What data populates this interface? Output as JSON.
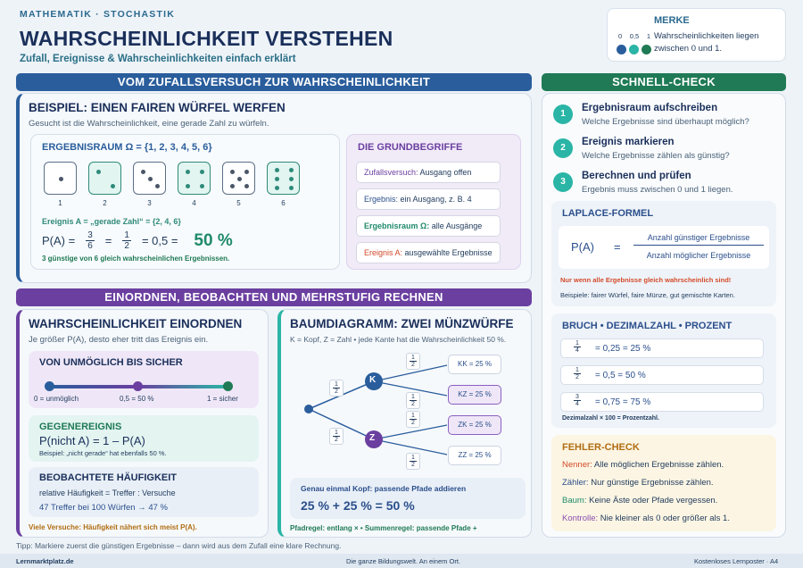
{
  "header": {
    "kicker": "MATHEMATIK · STOCHASTIK",
    "title": "WAHRSCHEINLICHKEIT VERSTEHEN",
    "subtitle": "Zufall, Ereignisse & Wahrscheinlichkeiten einfach erklärt"
  },
  "merke": {
    "title": "MERKE",
    "body": "Wahrscheinlichkeiten liegen zwischen 0 und 1.",
    "scale": [
      "0",
      "0,5",
      "1"
    ],
    "colors": [
      "#2a5d9c",
      "#2ab5a6",
      "#1f7a55"
    ]
  },
  "banner1": "VOM ZUFALLSVERSUCH ZUR WAHRSCHEINLICHKEIT",
  "banner2": "EINORDNEN, BEOBACHTEN UND MEHRSTUFIG RECHNEN",
  "banner3": "SCHNELL-CHECK",
  "beispiel": {
    "title": "BEISPIEL: EINEN FAIREN WÜRFEL WERFEN",
    "intro": "Gesucht ist die Wahrscheinlichkeit, eine gerade Zahl zu würfeln.",
    "raum": "ERGEBNISRAUM Ω = {1, 2, 3, 4, 5, 6}",
    "dice": [
      "1",
      "2",
      "3",
      "4",
      "5",
      "6"
    ],
    "ereignis": "Ereignis A = „gerade Zahl“ = {2, 4, 6}",
    "pa": "P(A) =",
    "f1n": "3",
    "f1d": "6",
    "eq1": "=",
    "f2n": "1",
    "f2d": "2",
    "eq2": "= 0,5 =",
    "pct": "50 %",
    "note": "3 günstige von 6 gleich wahrscheinlichen Ergebnissen."
  },
  "grund": {
    "title": "DIE GRUNDBEGRIFFE",
    "items": [
      {
        "k": "Zufallsversuch:",
        "v": " Ausgang offen"
      },
      {
        "k": "Ergebnis:",
        "v": " ein Ausgang, z. B. 4"
      },
      {
        "k": "Ergebnisraum Ω:",
        "v": " alle Ausgänge"
      },
      {
        "k": "Ereignis A:",
        "v": " ausgewählte Ergebnisse"
      }
    ]
  },
  "einordnen": {
    "title": "WAHRSCHEINLICHKEIT EINORDNEN",
    "intro": "Je größer P(A), desto eher tritt das Ereignis ein.",
    "scaleTitle": "VON UNMÖGLICH BIS SICHER",
    "s0": "0 = unmöglich",
    "s1": "0,5 = 50 %",
    "s2": "1 = sicher",
    "gegTitle": "GEGENEREIGNIS",
    "gegFormula": "P(nicht A) = 1 – P(A)",
    "gegNote": "Beispiel: „nicht gerade“ hat ebenfalls 50 %.",
    "haufTitle": "BEOBACHTETE HÄUFIGKEIT",
    "haufLine1": "relative Häufigkeit = Treffer : Versuche",
    "haufLine2": "47 Treffer bei 100 Würfen → 47 %",
    "haufNote": "Viele Versuche: Häufigkeit nähert sich meist P(A)."
  },
  "baum": {
    "title": "BAUMDIAGRAMM: ZWEI MÜNZWÜRFE",
    "intro": "K = Kopf, Z = Zahl • jede Kante hat die Wahrscheinlichkeit 50 %.",
    "n1": "K",
    "n2": "Z",
    "half": "1",
    "halfd": "2",
    "leaves": [
      "KK = 25 %",
      "KZ = 25 %",
      "ZK = 25 %",
      "ZZ = 25 %"
    ],
    "resTitle": "Genau einmal Kopf: passende Pfade addieren",
    "resFormula": "25 % + 25 % = 50 %",
    "regel": "Pfadregel: entlang × • Summenregel: passende Pfade +"
  },
  "check": {
    "steps": [
      {
        "n": "1",
        "t": "Ergebnisraum aufschreiben",
        "d": "Welche Ergebnisse sind überhaupt möglich?"
      },
      {
        "n": "2",
        "t": "Ereignis markieren",
        "d": "Welche Ergebnisse zählen als günstig?"
      },
      {
        "n": "3",
        "t": "Berechnen und prüfen",
        "d": "Ergebnis muss zwischen 0 und 1 liegen."
      }
    ]
  },
  "laplace": {
    "title": "LAPLACE-FORMEL",
    "pa": "P(A)",
    "eq": "=",
    "num": "Anzahl günstiger Ergebnisse",
    "den": "Anzahl möglicher Ergebnisse",
    "warn": "Nur wenn alle Ergebnisse gleich wahrscheinlich sind!",
    "bsp": "Beispiele: fairer Würfel, faire Münze, gut gemischte Karten."
  },
  "bruch": {
    "title": "BRUCH • DEZIMALZAHL • PROZENT",
    "rows": [
      {
        "n": "1",
        "d": "4",
        "v": "= 0,25 = 25 %"
      },
      {
        "n": "1",
        "d": "2",
        "v": "= 0,5 = 50 %"
      },
      {
        "n": "3",
        "d": "4",
        "v": "= 0,75 = 75 %"
      }
    ],
    "note": "Dezimalzahl × 100 = Prozentzahl."
  },
  "fehler": {
    "title": "FEHLER-CHECK",
    "items": [
      {
        "k": "Nenner:",
        "v": " Alle möglichen Ergebnisse zählen.",
        "c": "#d44a2a"
      },
      {
        "k": "Zähler:",
        "v": " Nur günstige Ergebnisse zählen.",
        "c": "#2b4f8c"
      },
      {
        "k": "Baum:",
        "v": " Keine Äste oder Pfade vergessen.",
        "c": "#1f8a6a"
      },
      {
        "k": "Kontrolle:",
        "v": " Nie kleiner als 0 oder größer als 1.",
        "c": "#8a4fb0"
      }
    ]
  },
  "tipp": "Tipp: Markiere zuerst die günstigen Ergebnisse – dann wird aus dem Zufall eine klare Rechnung.",
  "footer": {
    "left": "Lernmarktplatz.de",
    "mid": "Die ganze Bildungswelt. An einem Ort.",
    "right": "Kostenloses Lernposter · A4"
  }
}
